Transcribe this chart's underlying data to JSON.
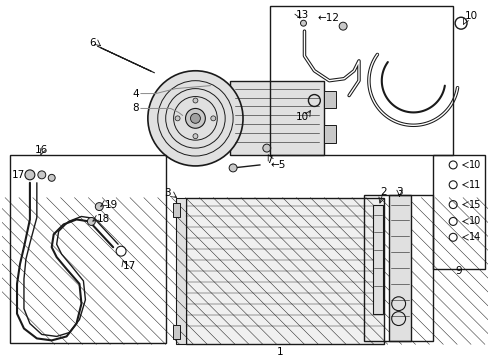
{
  "bg_color": "#ffffff",
  "line_color": "#1a1a1a",
  "fig_width": 4.9,
  "fig_height": 3.6,
  "dpi": 100,
  "gray_fill": "#c8c8c8",
  "light_gray": "#e0e0e0",
  "mid_gray": "#a0a0a0"
}
